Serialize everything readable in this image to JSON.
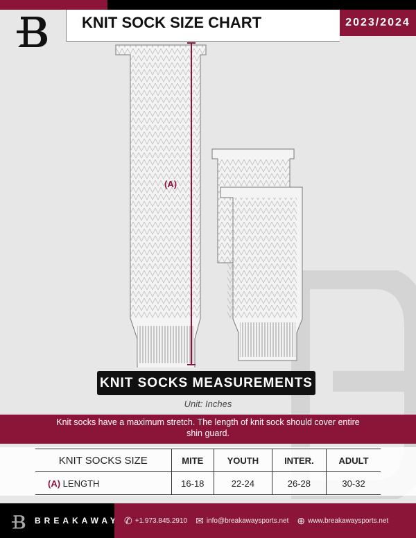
{
  "header": {
    "title": "KNIT SOCK SIZE CHART",
    "season": "2023/2024"
  },
  "diagram": {
    "label": "(A)"
  },
  "banner": "KNIT SOCKS MEASUREMENTS",
  "unit": "Unit: Inches",
  "note": "Knit socks have a maximum stretch. The length of knit sock should cover entire shin guard.",
  "table": {
    "header": [
      "KNIT SOCKS SIZE",
      "MITE",
      "YOUTH",
      "INTER.",
      "ADULT"
    ],
    "row_marker": "(A)",
    "row_label": "LENGTH",
    "values": [
      "16-18",
      "22-24",
      "26-28",
      "30-32"
    ]
  },
  "footer": {
    "brand": "BREAKAWAY",
    "phone": "+1.973.845.2910",
    "email": "info@breakawaysports.net",
    "website": "www.breakawaysports.net"
  },
  "colors": {
    "accent": "#8a1538",
    "dark": "#000000"
  }
}
